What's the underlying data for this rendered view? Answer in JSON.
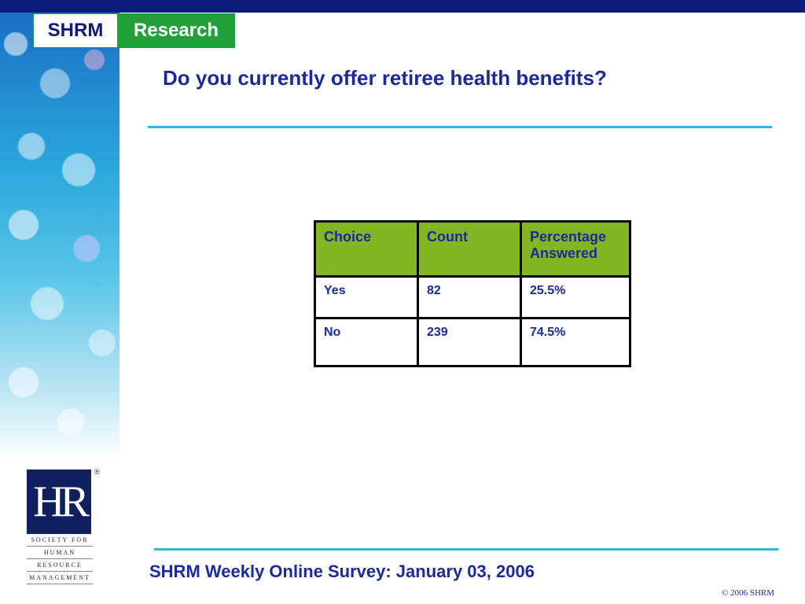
{
  "brand": {
    "shrm": "SHRM",
    "research": "Research"
  },
  "title": "Do you currently offer retiree health benefits?",
  "table": {
    "headers": [
      "Choice",
      "Count",
      "Percentage Answered"
    ],
    "rows": [
      [
        "Yes",
        "82",
        "25.5%"
      ],
      [
        "No",
        "239",
        "74.5%"
      ]
    ]
  },
  "hr_logo": {
    "mark": "HR",
    "registered": "®",
    "lines": [
      "SOCIETY FOR",
      "HUMAN",
      "RESOURCE",
      "MANAGEMENT"
    ]
  },
  "footer": "SHRM Weekly Online Survey: January 03, 2006",
  "copyright": "© 2006 SHRM",
  "colors": {
    "navy": "#0c1a78",
    "title_blue": "#1a2a9a",
    "header_green": "#82b624",
    "rule_cyan": "#33b7e2",
    "research_green": "#22a03a"
  }
}
